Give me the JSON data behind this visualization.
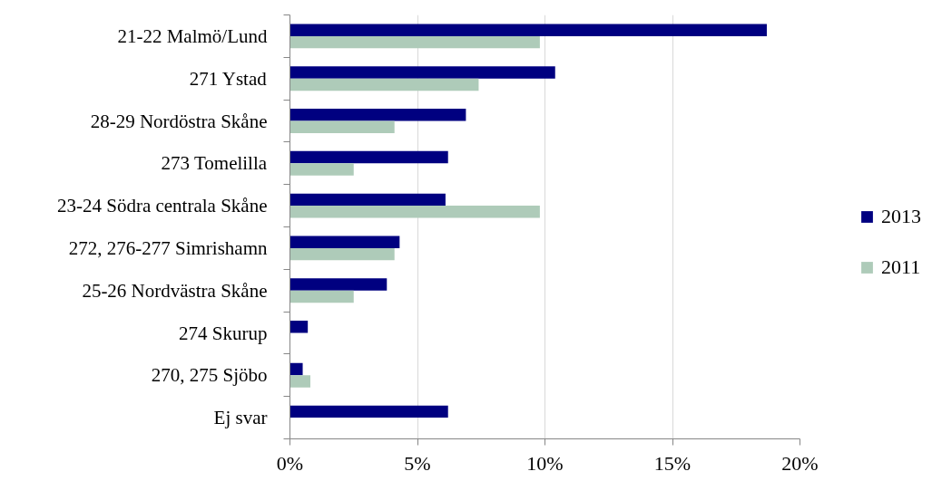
{
  "chart_data": {
    "type": "bar",
    "orientation": "horizontal",
    "categories": [
      "21-22 Malmö/Lund",
      "271 Ystad",
      "28-29 Nordöstra Skåne",
      "273 Tomelilla",
      "23-24 Södra centrala Skåne",
      "272, 276-277 Simrishamn",
      "25-26 Nordvästra Skåne",
      "274 Skurup",
      "270, 275 Sjöbo",
      "Ej svar"
    ],
    "series": [
      {
        "name": "2013",
        "color": "#000080",
        "values": [
          18.7,
          10.4,
          6.9,
          6.2,
          6.1,
          4.3,
          3.8,
          0.7,
          0.5,
          6.2
        ]
      },
      {
        "name": "2011",
        "color": "#aecbb9",
        "values": [
          9.8,
          7.4,
          4.1,
          2.5,
          9.8,
          4.1,
          2.5,
          null,
          0.8,
          null
        ]
      }
    ],
    "xlim": [
      0,
      20
    ],
    "xticks": [
      {
        "value": 0,
        "label": "0%"
      },
      {
        "value": 5,
        "label": "5%"
      },
      {
        "value": 10,
        "label": "10%"
      },
      {
        "value": 15,
        "label": "15%"
      },
      {
        "value": 20,
        "label": "20%"
      }
    ],
    "grid": "x",
    "legend": "right"
  }
}
